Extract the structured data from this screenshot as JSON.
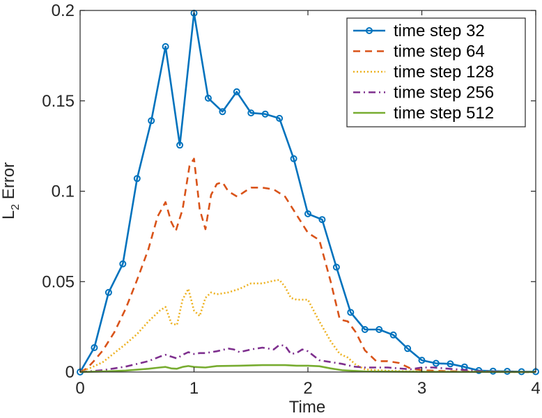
{
  "chart_data": {
    "type": "line",
    "title": "",
    "xlabel": "Time",
    "ylabel": {
      "main": "L",
      "sub": "2",
      "rest": " Error"
    },
    "xlim": [
      0,
      4
    ],
    "ylim": [
      0,
      0.2
    ],
    "xticks": [
      {
        "value": 0,
        "label": "0"
      },
      {
        "value": 1,
        "label": "1"
      },
      {
        "value": 2,
        "label": "2"
      },
      {
        "value": 3,
        "label": "3"
      },
      {
        "value": 4,
        "label": "4"
      }
    ],
    "yticks": [
      {
        "value": 0,
        "label": "0"
      },
      {
        "value": 0.05,
        "label": "0.05"
      },
      {
        "value": 0.1,
        "label": "0.1"
      },
      {
        "value": 0.15,
        "label": "0.15"
      },
      {
        "value": 0.2,
        "label": "0.2"
      }
    ],
    "grid": false,
    "legend_position": "top-right",
    "series": [
      {
        "name": "time step 32",
        "color": "#0072BD",
        "style": "solid-circle",
        "x": [
          0,
          0.125,
          0.25,
          0.375,
          0.5,
          0.625,
          0.75,
          0.875,
          1.0,
          1.125,
          1.25,
          1.375,
          1.5,
          1.625,
          1.75,
          1.875,
          2.0,
          2.125,
          2.25,
          2.375,
          2.5,
          2.625,
          2.75,
          2.875,
          3.0,
          3.125,
          3.25,
          3.375,
          3.5,
          3.625,
          3.75,
          3.875,
          4.0
        ],
        "y": [
          0,
          0.0135,
          0.044,
          0.0598,
          0.107,
          0.139,
          0.18,
          0.1255,
          0.1985,
          0.1515,
          0.144,
          0.155,
          0.1433,
          0.1427,
          0.1403,
          0.118,
          0.0875,
          0.0843,
          0.058,
          0.033,
          0.0235,
          0.0235,
          0.0205,
          0.013,
          0.0065,
          0.0048,
          0.0045,
          0.0028,
          0.0008,
          0.0005,
          0.0004,
          0.0002,
          0.0002
        ]
      },
      {
        "name": "time step 64",
        "color": "#D95319",
        "style": "dashed",
        "x": [
          0,
          0.06,
          0.12,
          0.2,
          0.3,
          0.4,
          0.5,
          0.6,
          0.68,
          0.75,
          0.8,
          0.84,
          0.9,
          0.96,
          1.0,
          1.05,
          1.1,
          1.15,
          1.2,
          1.25,
          1.3,
          1.38,
          1.45,
          1.5,
          1.6,
          1.7,
          1.8,
          1.9,
          2.0,
          2.1,
          2.2,
          2.28,
          2.35,
          2.42,
          2.5,
          2.6,
          2.7,
          2.8,
          2.9,
          3.0,
          3.2,
          3.5,
          4.0
        ],
        "y": [
          0,
          0.002,
          0.006,
          0.012,
          0.022,
          0.035,
          0.051,
          0.068,
          0.086,
          0.094,
          0.083,
          0.078,
          0.09,
          0.114,
          0.118,
          0.09,
          0.079,
          0.098,
          0.104,
          0.105,
          0.1,
          0.097,
          0.1,
          0.102,
          0.102,
          0.101,
          0.097,
          0.087,
          0.077,
          0.073,
          0.05,
          0.029,
          0.028,
          0.022,
          0.012,
          0.006,
          0.006,
          0.005,
          0.002,
          0.001,
          0.0005,
          0.0002,
          0
        ]
      },
      {
        "name": "time step 128",
        "color": "#EDB120",
        "style": "dotted",
        "x": [
          0,
          0.1,
          0.2,
          0.3,
          0.4,
          0.5,
          0.6,
          0.7,
          0.75,
          0.8,
          0.85,
          0.9,
          0.95,
          1.0,
          1.05,
          1.1,
          1.15,
          1.2,
          1.3,
          1.4,
          1.5,
          1.6,
          1.7,
          1.75,
          1.8,
          1.85,
          1.9,
          2.0,
          2.1,
          2.2,
          2.28,
          2.35,
          2.42,
          2.5,
          2.6,
          2.8,
          3.0,
          3.5,
          4.0
        ],
        "y": [
          0,
          0.0025,
          0.0055,
          0.0105,
          0.0155,
          0.021,
          0.028,
          0.034,
          0.036,
          0.027,
          0.026,
          0.04,
          0.046,
          0.034,
          0.031,
          0.041,
          0.044,
          0.043,
          0.044,
          0.046,
          0.049,
          0.049,
          0.0505,
          0.051,
          0.047,
          0.041,
          0.04,
          0.04,
          0.028,
          0.017,
          0.01,
          0.008,
          0.004,
          0.0015,
          0.001,
          0.0005,
          0.0002,
          0.0001,
          0
        ]
      },
      {
        "name": "time step 256",
        "color": "#7E2F8E",
        "style": "dashdot",
        "x": [
          0,
          0.1,
          0.2,
          0.3,
          0.4,
          0.5,
          0.6,
          0.7,
          0.75,
          0.8,
          0.85,
          0.9,
          0.95,
          1.0,
          1.05,
          1.1,
          1.2,
          1.3,
          1.35,
          1.4,
          1.5,
          1.6,
          1.7,
          1.75,
          1.8,
          1.85,
          1.9,
          1.95,
          2.0,
          2.1,
          2.2,
          2.3,
          2.4,
          2.5,
          2.6,
          2.7,
          2.8,
          2.9,
          3.0,
          3.1,
          3.2,
          3.3,
          3.5,
          3.7,
          4.0
        ],
        "y": [
          0,
          0.0005,
          0.001,
          0.002,
          0.003,
          0.0045,
          0.006,
          0.0085,
          0.0095,
          0.0085,
          0.0075,
          0.0095,
          0.011,
          0.01,
          0.0105,
          0.0105,
          0.0115,
          0.013,
          0.0125,
          0.011,
          0.0125,
          0.0135,
          0.0125,
          0.015,
          0.0145,
          0.01,
          0.0105,
          0.0125,
          0.0115,
          0.0065,
          0.0055,
          0.0045,
          0.003,
          0.0025,
          0.0025,
          0.0025,
          0.002,
          0.0015,
          0.0025,
          0.0025,
          0.002,
          0.0015,
          0.0005,
          0.0002,
          0
        ]
      },
      {
        "name": "time step 512",
        "color": "#77AC30",
        "style": "solid",
        "x": [
          0,
          0.2,
          0.4,
          0.6,
          0.7,
          0.75,
          0.8,
          0.85,
          0.9,
          0.95,
          1.0,
          1.1,
          1.2,
          1.4,
          1.6,
          1.8,
          1.9,
          2.0,
          2.1,
          2.2,
          2.3,
          2.5,
          3.0,
          4.0
        ],
        "y": [
          0,
          0.0003,
          0.0008,
          0.0018,
          0.0025,
          0.0028,
          0.002,
          0.0018,
          0.0028,
          0.0033,
          0.0028,
          0.0025,
          0.0033,
          0.0035,
          0.0038,
          0.0038,
          0.0035,
          0.0035,
          0.0032,
          0.002,
          0.001,
          0.0003,
          0.0001,
          0
        ]
      }
    ]
  }
}
